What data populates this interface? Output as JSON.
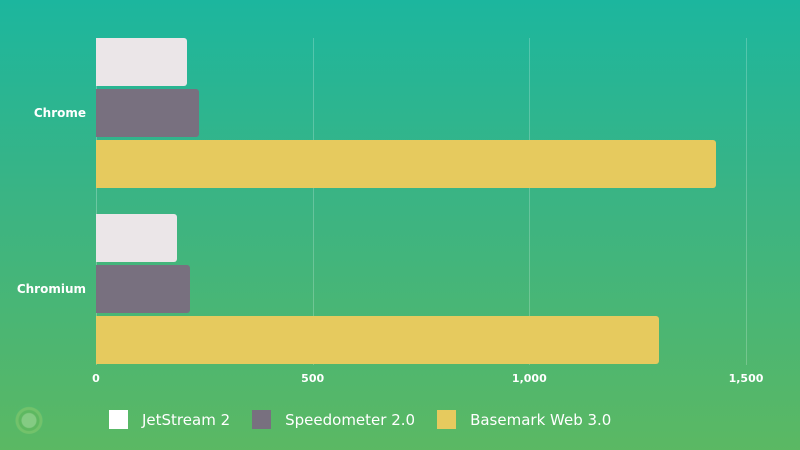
{
  "chart_data": {
    "type": "bar",
    "orientation": "horizontal",
    "categories": [
      "Chrome",
      "Chromium"
    ],
    "series": [
      {
        "name": "JetStream 2",
        "color": "#ebe6e8",
        "values": [
          211,
          188
        ]
      },
      {
        "name": "Speedometer 2.0",
        "color": "#78707f",
        "values": [
          238,
          217
        ]
      },
      {
        "name": "Basemark Web 3.0",
        "color": "#e6ca5e",
        "values": [
          1430,
          1299
        ]
      }
    ],
    "title": "",
    "xlabel": "",
    "ylabel": "",
    "xlim": [
      0,
      1500
    ],
    "x_ticks": [
      "0",
      "500",
      "1,000",
      "1,500"
    ],
    "grid": true,
    "legend_position": "bottom"
  },
  "legend": {
    "items": [
      {
        "label": "JetStream 2",
        "color": "#ffffff"
      },
      {
        "label": "Speedometer 2.0",
        "color": "#78707f"
      },
      {
        "label": "Basemark Web 3.0",
        "color": "#e6ca5e"
      }
    ]
  }
}
